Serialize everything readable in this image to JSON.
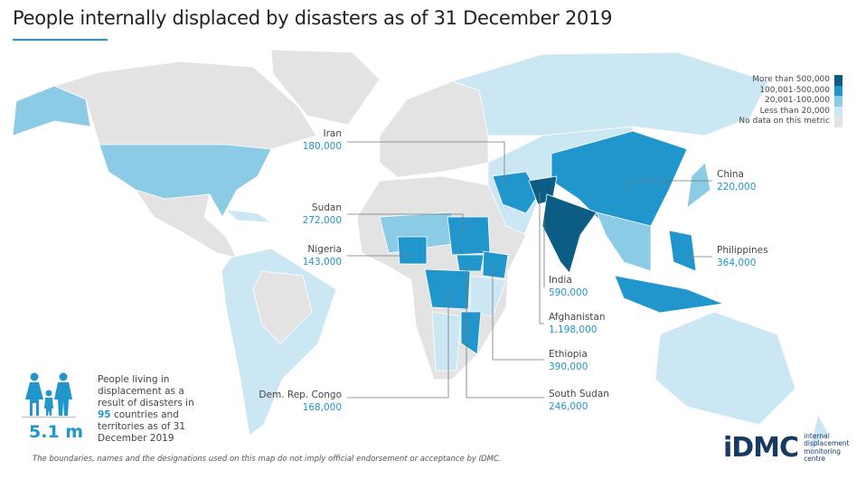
{
  "title": "People internally displaced by disasters as of 31 December 2019",
  "colors": {
    "more_than_500k": "#0b5d86",
    "100k_500k": "#2196cc",
    "20k_100k": "#8ccbe6",
    "less_than_20k": "#cce7f4",
    "no_data": "#e3e3e3",
    "accent": "#2196cc"
  },
  "legend": {
    "items": [
      {
        "label": "More than 500,000",
        "color": "#0b5d86"
      },
      {
        "label": "100,001-500,000",
        "color": "#2196cc"
      },
      {
        "label": "20,001-100,000",
        "color": "#8ccbe6"
      },
      {
        "label": "Less than 20,000",
        "color": "#cce7f4"
      },
      {
        "label": "No data on this metric",
        "color": "#e3e3e3"
      }
    ]
  },
  "callouts": {
    "iran": {
      "country": "Iran",
      "value": "180,000"
    },
    "sudan": {
      "country": "Sudan",
      "value": "272,000"
    },
    "nigeria": {
      "country": "Nigeria",
      "value": "143,000"
    },
    "drc": {
      "country": "Dem. Rep. Congo",
      "value": "168,000"
    },
    "china": {
      "country": "China",
      "value": "220,000"
    },
    "philippines": {
      "country": "Philippines",
      "value": "364,000"
    },
    "india": {
      "country": "India",
      "value": "590,000"
    },
    "afghanistan": {
      "country": "Afghanistan",
      "value": "1,198,000"
    },
    "ethiopia": {
      "country": "Ethiopia",
      "value": "390,000"
    },
    "south_sudan": {
      "country": "South Sudan",
      "value": "246,000"
    }
  },
  "summary": {
    "total": "5.1 m",
    "text_before": "People living in displacement as a result of disasters in",
    "countries": "95",
    "text_after": "countries and territories as of 31 December 2019"
  },
  "disclaimer": "The boundaries, names and the designations used on this map do not imply official endorsement or acceptance by IDMC.",
  "logo": {
    "mark": "iDMC",
    "subtitle_lines": [
      "internal",
      "displacement",
      "monitoring",
      "centre"
    ]
  }
}
